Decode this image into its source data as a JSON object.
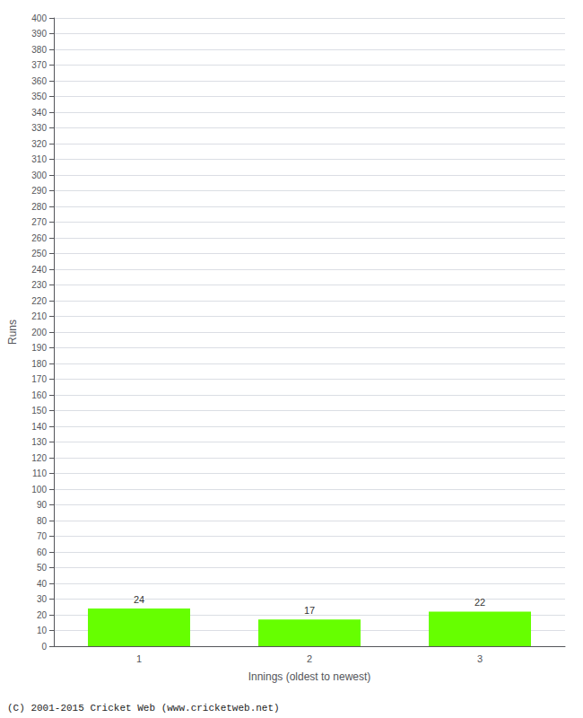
{
  "chart_data": {
    "type": "bar",
    "categories": [
      "1",
      "2",
      "3"
    ],
    "values": [
      24,
      17,
      22
    ],
    "color": "#66ff00",
    "xlabel": "Innings (oldest to newest)",
    "ylabel": "Runs",
    "ylim": [
      0,
      400
    ],
    "yticks": [
      0,
      10,
      20,
      30,
      40,
      50,
      60,
      70,
      80,
      90,
      100,
      110,
      120,
      130,
      140,
      150,
      160,
      170,
      180,
      190,
      200,
      210,
      220,
      230,
      240,
      250,
      260,
      270,
      280,
      290,
      300,
      310,
      320,
      330,
      340,
      350,
      360,
      370,
      380,
      390,
      400
    ],
    "grid": true,
    "data_labels": true,
    "annotations": [
      "(C) 2001-2015 Cricket Web (www.cricketweb.net)"
    ]
  }
}
